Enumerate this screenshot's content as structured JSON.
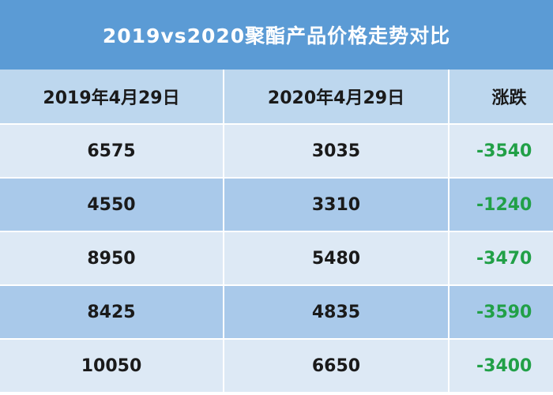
{
  "header": {
    "title": "2019vs2020聚酯产品价格走势对比"
  },
  "table": {
    "columns": [
      "2019年4月29日",
      "2020年4月29日",
      "涨跌"
    ],
    "rows": [
      [
        6575,
        3035,
        -3540
      ],
      [
        4550,
        3310,
        -1240
      ],
      [
        8950,
        5480,
        -3470
      ],
      [
        8425,
        4835,
        -3590
      ],
      [
        10050,
        6650,
        -3400
      ]
    ]
  }
}
